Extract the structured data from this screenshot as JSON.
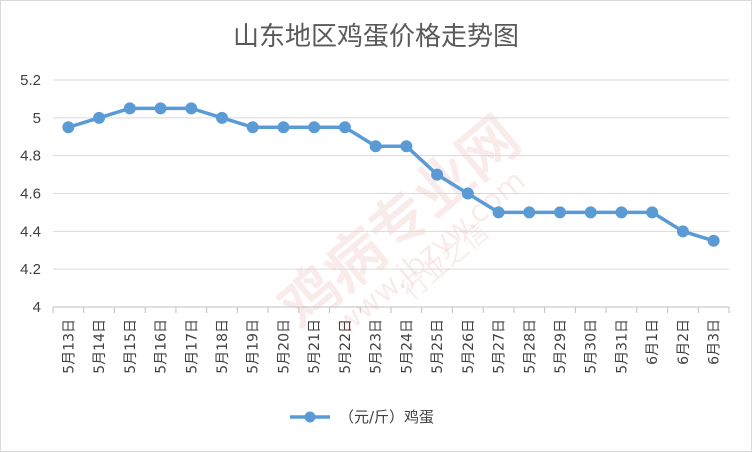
{
  "chart_data": {
    "type": "line",
    "title": "山东地区鸡蛋价格走势图",
    "xlabel": "",
    "ylabel": "",
    "categories": [
      "5月13日",
      "5月14日",
      "5月15日",
      "5月16日",
      "5月17日",
      "5月18日",
      "5月19日",
      "5月20日",
      "5月21日",
      "5月22日",
      "5月23日",
      "5月24日",
      "5月25日",
      "5月26日",
      "5月27日",
      "5月28日",
      "5月29日",
      "5月30日",
      "5月31日",
      "6月1日",
      "6月2日",
      "6月3日"
    ],
    "series": [
      {
        "name": "（元/斤）鸡蛋",
        "color": "#5b9bd5",
        "values": [
          4.95,
          5.0,
          5.05,
          5.05,
          5.05,
          5.0,
          4.95,
          4.95,
          4.95,
          4.95,
          4.85,
          4.85,
          4.7,
          4.6,
          4.5,
          4.5,
          4.5,
          4.5,
          4.5,
          4.5,
          4.4,
          4.35
        ]
      }
    ],
    "ylim": [
      4,
      5.2
    ],
    "yticks": [
      "4",
      "4.2",
      "4.4",
      "4.6",
      "4.8",
      "5",
      "5.2"
    ],
    "grid": true,
    "legend_position": "bottom"
  },
  "watermark": {
    "lines": [
      "鸡病专业网",
      "www.jbzyw.com",
      "行业之信"
    ],
    "color": "#f2c7c7"
  },
  "colors": {
    "gridline": "#d9d9d9",
    "axis": "#bfbfbf",
    "text": "#404040"
  }
}
